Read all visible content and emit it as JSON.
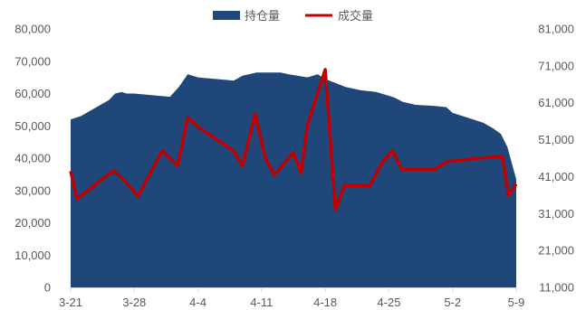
{
  "chart_data": {
    "type": "area+line",
    "grid": false,
    "legend_position": "top-center",
    "legend": [
      {
        "label": "持仓量",
        "color": "#1f477a",
        "marker": "rect"
      },
      {
        "label": "成交量",
        "color": "#c00000",
        "marker": "line"
      }
    ],
    "x_tick_labels": [
      "3-21",
      "3-28",
      "4-4",
      "4-11",
      "4-18",
      "4-25",
      "5-2",
      "5-9"
    ],
    "x_tick_indices": [
      0,
      5,
      10,
      15,
      20,
      25,
      30,
      35
    ],
    "x_count": 36,
    "y_left": {
      "min": 0,
      "max": 80000,
      "ticks": [
        "0",
        "10,000",
        "20,000",
        "30,000",
        "40,000",
        "50,000",
        "60,000",
        "70,000",
        "80,000"
      ]
    },
    "y_right": {
      "min": 11000,
      "max": 81000,
      "ticks": [
        "11,000",
        "21,000",
        "31,000",
        "41,000",
        "51,000",
        "61,000",
        "71,000",
        "81,000"
      ]
    },
    "series": [
      {
        "name": "持仓量",
        "axis": "left",
        "type": "area",
        "color": "#1f477a",
        "x": [
          0,
          0.8,
          3,
          3.5,
          4,
          4.4,
          5,
          7.8,
          8.5,
          9.2,
          10,
          12.8,
          13.5,
          14.6,
          15,
          16.5,
          17.1,
          18.6,
          19.4,
          20,
          21.6,
          22.8,
          24,
          25.4,
          26.1,
          27.1,
          28.5,
          29.5,
          30,
          32.4,
          33.2,
          33.8,
          34.3,
          35
        ],
        "values": [
          52000,
          53000,
          58000,
          60000,
          60500,
          60000,
          60000,
          59000,
          62000,
          66000,
          65000,
          64000,
          65500,
          66500,
          66500,
          66500,
          66000,
          65000,
          66000,
          64500,
          62000,
          61000,
          60500,
          58800,
          57400,
          56500,
          56200,
          55800,
          54000,
          51000,
          49200,
          47500,
          43500,
          33500
        ]
      },
      {
        "name": "成交量",
        "axis": "right",
        "type": "line",
        "color": "#c00000",
        "x": [
          0,
          0.5,
          1.2,
          2.9,
          3.4,
          4.2,
          5.3,
          7.2,
          8.4,
          9.2,
          10.2,
          12.8,
          13.5,
          14.5,
          15.3,
          16,
          17.5,
          18.1,
          18.6,
          20,
          20.8,
          21.5,
          23.5,
          24.5,
          25.3,
          26,
          28.6,
          29.5,
          32,
          33.9,
          34.4,
          35
        ],
        "values": [
          42500,
          35000,
          36800,
          41500,
          42500,
          40000,
          35700,
          48000,
          44000,
          57000,
          54000,
          48000,
          44000,
          58000,
          46000,
          41500,
          47500,
          42000,
          55000,
          70000,
          32000,
          38500,
          38500,
          45000,
          48000,
          43000,
          43000,
          45000,
          46000,
          46500,
          36000,
          39000
        ]
      }
    ]
  }
}
